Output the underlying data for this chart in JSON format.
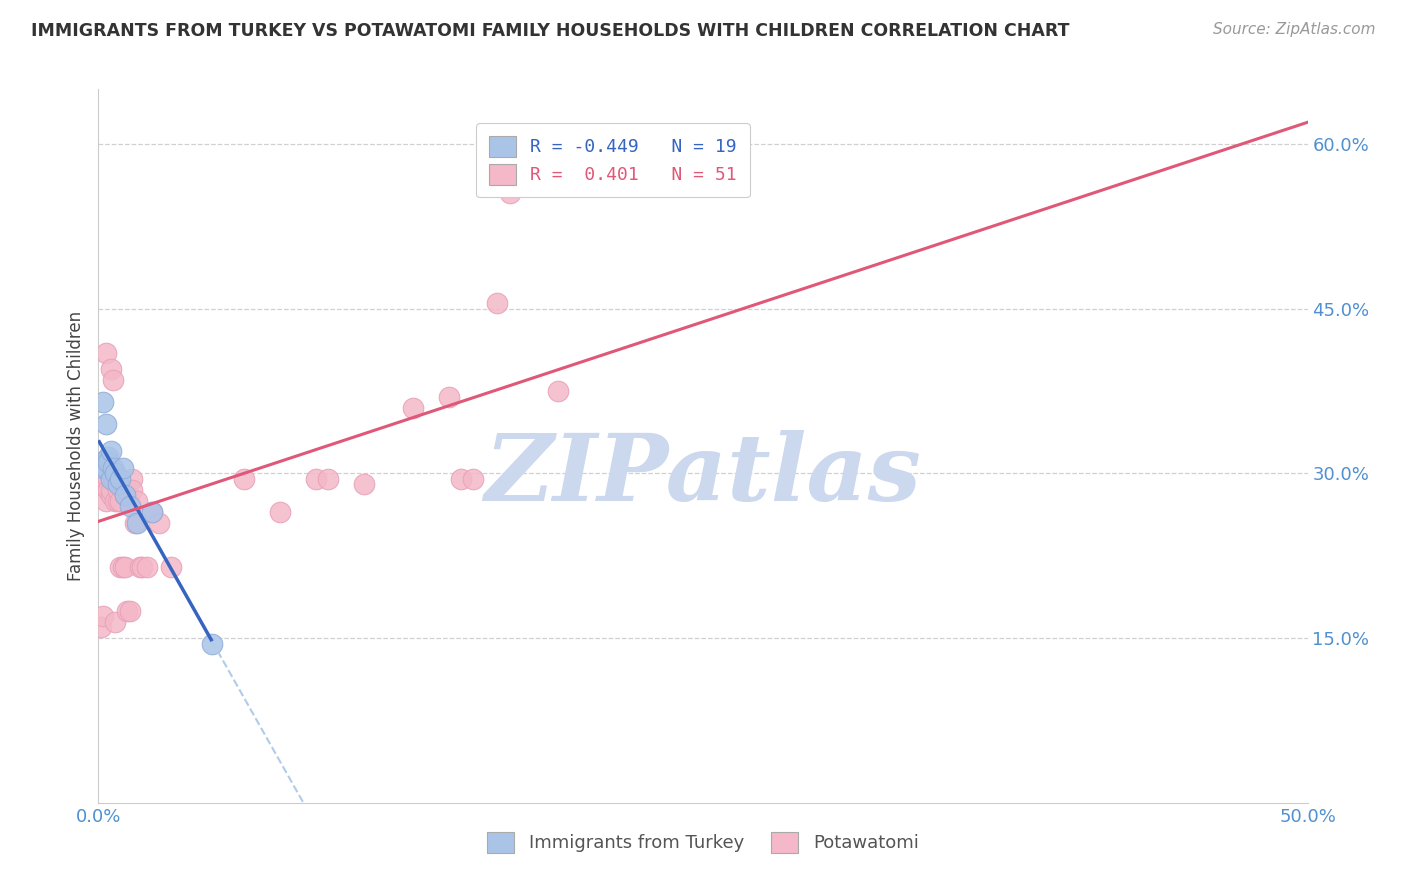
{
  "title": "IMMIGRANTS FROM TURKEY VS POTAWATOMI FAMILY HOUSEHOLDS WITH CHILDREN CORRELATION CHART",
  "source": "Source: ZipAtlas.com",
  "ylabel": "Family Households with Children",
  "xlim": [
    0.0,
    0.5
  ],
  "ylim": [
    0.0,
    0.65
  ],
  "watermark": "ZIPatlas",
  "blue_x": [
    0.001,
    0.002,
    0.002,
    0.003,
    0.003,
    0.004,
    0.004,
    0.005,
    0.005,
    0.006,
    0.007,
    0.008,
    0.009,
    0.01,
    0.011,
    0.013,
    0.016,
    0.022,
    0.047
  ],
  "blue_y": [
    0.31,
    0.365,
    0.305,
    0.345,
    0.305,
    0.315,
    0.31,
    0.295,
    0.32,
    0.305,
    0.3,
    0.29,
    0.295,
    0.305,
    0.28,
    0.27,
    0.255,
    0.265,
    0.145
  ],
  "pink_x": [
    0.001,
    0.001,
    0.002,
    0.002,
    0.003,
    0.003,
    0.003,
    0.004,
    0.004,
    0.005,
    0.005,
    0.005,
    0.005,
    0.006,
    0.006,
    0.007,
    0.007,
    0.007,
    0.008,
    0.008,
    0.009,
    0.009,
    0.01,
    0.01,
    0.011,
    0.011,
    0.012,
    0.012,
    0.013,
    0.014,
    0.014,
    0.015,
    0.016,
    0.017,
    0.018,
    0.02,
    0.022,
    0.025,
    0.03,
    0.06,
    0.075,
    0.09,
    0.095,
    0.11,
    0.13,
    0.145,
    0.15,
    0.155,
    0.165,
    0.17,
    0.19
  ],
  "pink_y": [
    0.29,
    0.16,
    0.3,
    0.17,
    0.295,
    0.275,
    0.41,
    0.295,
    0.285,
    0.295,
    0.395,
    0.28,
    0.285,
    0.295,
    0.385,
    0.275,
    0.295,
    0.165,
    0.275,
    0.285,
    0.215,
    0.275,
    0.285,
    0.215,
    0.28,
    0.215,
    0.285,
    0.175,
    0.175,
    0.295,
    0.285,
    0.255,
    0.275,
    0.215,
    0.215,
    0.215,
    0.265,
    0.255,
    0.215,
    0.295,
    0.265,
    0.295,
    0.295,
    0.29,
    0.36,
    0.37,
    0.295,
    0.295,
    0.455,
    0.555,
    0.375
  ],
  "blue_color": "#aac4e8",
  "pink_color": "#f4b8c8",
  "blue_line_color": "#3565c0",
  "pink_line_color": "#e05878",
  "blue_dash_color": "#b0cce8",
  "grid_color": "#d0d0d0",
  "title_color": "#333333",
  "source_color": "#999999",
  "axis_label_color": "#5090d0",
  "watermark_color": "#ccd8ee"
}
